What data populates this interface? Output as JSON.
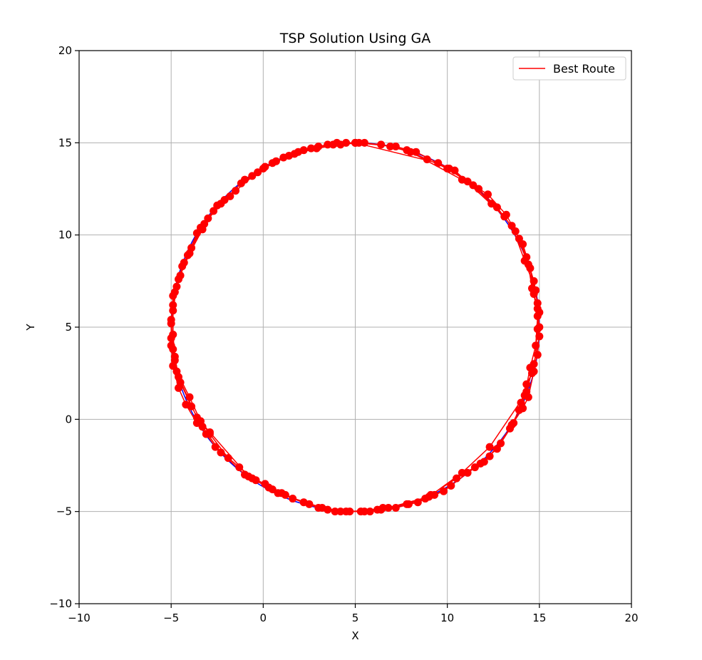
{
  "chart_data": {
    "type": "line",
    "title": "TSP Solution Using GA",
    "xlabel": "X",
    "ylabel": "Y",
    "xlim": [
      -10,
      20
    ],
    "ylim": [
      -10,
      20
    ],
    "xticks": [
      -10,
      -5,
      0,
      5,
      10,
      15,
      20
    ],
    "yticks": [
      -10,
      -5,
      0,
      5,
      10,
      15,
      20
    ],
    "xtick_labels": [
      "−10",
      "−5",
      "0",
      "5",
      "10",
      "15",
      "20"
    ],
    "ytick_labels": [
      "−10",
      "−5",
      "0",
      "5",
      "10",
      "15",
      "20"
    ],
    "grid": true,
    "legend": {
      "position": "top-right",
      "entries": [
        {
          "label": "Best Route",
          "color": "#ff0000"
        }
      ]
    },
    "circle": {
      "center": [
        5,
        5
      ],
      "radius": 10,
      "color": "#0000ff"
    },
    "series": [
      {
        "name": "Best Route",
        "color": "#ff0000",
        "marker_color": "#ff0000",
        "points": [
          [
            5.0,
            15.0
          ],
          [
            7.2,
            14.8
          ],
          [
            8.3,
            14.5
          ],
          [
            10.1,
            13.6
          ],
          [
            11.1,
            12.9
          ],
          [
            12.2,
            12.2
          ],
          [
            13.2,
            11.1
          ],
          [
            13.9,
            9.8
          ],
          [
            14.3,
            8.8
          ],
          [
            14.7,
            7.5
          ],
          [
            14.9,
            6.3
          ],
          [
            15.0,
            5.0
          ],
          [
            14.9,
            3.5
          ],
          [
            14.6,
            2.5
          ],
          [
            14.3,
            1.9
          ],
          [
            14.0,
            0.9
          ],
          [
            13.6,
            -0.2
          ],
          [
            12.9,
            -1.3
          ],
          [
            12.0,
            -2.3
          ],
          [
            11.1,
            -2.9
          ],
          [
            10.2,
            -3.6
          ],
          [
            9.3,
            -4.1
          ],
          [
            8.4,
            -4.5
          ],
          [
            7.2,
            -4.8
          ],
          [
            6.2,
            -4.9
          ],
          [
            5.5,
            -5.0
          ],
          [
            4.7,
            -5.0
          ],
          [
            3.5,
            -4.9
          ],
          [
            2.2,
            -4.5
          ],
          [
            1.0,
            -4.0
          ],
          [
            0.3,
            -3.7
          ],
          [
            -0.4,
            -3.3
          ],
          [
            -1.3,
            -2.6
          ],
          [
            -2.6,
            -1.5
          ],
          [
            -3.1,
            -0.8
          ],
          [
            -3.6,
            -0.2
          ],
          [
            -4.2,
            0.8
          ],
          [
            -4.6,
            1.7
          ],
          [
            -4.9,
            2.9
          ],
          [
            -5.0,
            4.0
          ],
          [
            -5.0,
            5.2
          ],
          [
            -4.9,
            6.7
          ],
          [
            -4.5,
            7.8
          ],
          [
            -4.1,
            8.9
          ],
          [
            -3.6,
            10.1
          ],
          [
            -3.0,
            10.9
          ],
          [
            -2.1,
            11.9
          ],
          [
            -1.0,
            13.0
          ],
          [
            0.1,
            13.7
          ],
          [
            1.1,
            14.2
          ],
          [
            2.2,
            14.6
          ],
          [
            3.5,
            14.9
          ],
          [
            4.5,
            15.0
          ],
          [
            5.0,
            15.0
          ],
          [
            9.5,
            13.9
          ],
          [
            10.4,
            13.5
          ],
          [
            13.1,
            11.0
          ],
          [
            14.1,
            9.5
          ],
          [
            14.5,
            8.2
          ],
          [
            14.7,
            6.8
          ],
          [
            14.9,
            5.6
          ],
          [
            14.8,
            4.0
          ],
          [
            14.5,
            2.8
          ],
          [
            14.2,
            1.3
          ],
          [
            12.3,
            -1.5
          ],
          [
            10.8,
            -2.9
          ],
          [
            9.0,
            -4.2
          ],
          [
            6.4,
            -4.9
          ],
          [
            4.5,
            -5.0
          ],
          [
            3.2,
            -4.8
          ],
          [
            0.8,
            -4.0
          ],
          [
            -0.8,
            -3.1
          ],
          [
            -2.9,
            -0.7
          ],
          [
            -3.6,
            0.1
          ],
          [
            -4.6,
            2.3
          ],
          [
            -4.8,
            3.4
          ],
          [
            -4.9,
            4.6
          ],
          [
            -4.9,
            5.9
          ],
          [
            -4.7,
            7.2
          ],
          [
            -4.3,
            8.5
          ],
          [
            -3.4,
            10.4
          ],
          [
            -2.5,
            11.6
          ],
          [
            -1.5,
            12.4
          ],
          [
            -0.3,
            13.4
          ],
          [
            0.7,
            14.0
          ],
          [
            1.9,
            14.5
          ],
          [
            3.0,
            14.8
          ],
          [
            4.0,
            15.0
          ],
          [
            5.2,
            15.0
          ],
          [
            6.4,
            14.9
          ],
          [
            7.8,
            14.6
          ],
          [
            8.9,
            14.1
          ],
          [
            10.0,
            13.6
          ],
          [
            11.4,
            12.7
          ],
          [
            12.4,
            11.7
          ],
          [
            13.5,
            10.5
          ],
          [
            14.2,
            8.6
          ],
          [
            14.8,
            7.0
          ],
          [
            14.9,
            6.0
          ],
          [
            15.0,
            4.5
          ],
          [
            14.7,
            3.0
          ],
          [
            14.3,
            1.5
          ],
          [
            13.9,
            0.5
          ],
          [
            13.4,
            -0.5
          ],
          [
            12.3,
            -2.0
          ],
          [
            11.5,
            -2.6
          ],
          [
            9.8,
            -3.9
          ],
          [
            8.8,
            -4.3
          ],
          [
            7.8,
            -4.6
          ],
          [
            6.8,
            -4.8
          ],
          [
            5.8,
            -5.0
          ],
          [
            4.2,
            -5.0
          ],
          [
            3.0,
            -4.8
          ],
          [
            1.6,
            -4.3
          ],
          [
            0.5,
            -3.8
          ],
          [
            -0.6,
            -3.2
          ],
          [
            -1.9,
            -2.1
          ],
          [
            -2.9,
            -0.8
          ],
          [
            -3.4,
            -0.1
          ],
          [
            -4.0,
            1.2
          ],
          [
            -4.7,
            2.6
          ],
          [
            -4.9,
            3.8
          ],
          [
            -5.0,
            5.4
          ],
          [
            -4.8,
            6.9
          ],
          [
            -4.4,
            8.3
          ],
          [
            -3.9,
            9.3
          ],
          [
            -3.2,
            10.6
          ],
          [
            -2.3,
            11.7
          ],
          [
            -1.2,
            12.8
          ],
          [
            0.0,
            13.6
          ],
          [
            1.4,
            14.3
          ],
          [
            2.6,
            14.7
          ],
          [
            3.8,
            14.9
          ],
          [
            5.5,
            15.0
          ],
          [
            6.9,
            14.8
          ],
          [
            8.0,
            14.5
          ],
          [
            10.8,
            13.0
          ],
          [
            11.7,
            12.5
          ],
          [
            12.7,
            11.5
          ],
          [
            13.7,
            10.2
          ],
          [
            14.4,
            8.4
          ],
          [
            14.6,
            7.1
          ],
          [
            15.0,
            5.8
          ],
          [
            14.9,
            4.9
          ],
          [
            14.7,
            2.6
          ],
          [
            14.4,
            1.2
          ],
          [
            14.1,
            0.6
          ],
          [
            13.5,
            -0.3
          ],
          [
            12.7,
            -1.6
          ],
          [
            11.8,
            -2.4
          ],
          [
            10.5,
            -3.2
          ],
          [
            9.1,
            -4.1
          ],
          [
            7.9,
            -4.6
          ],
          [
            6.5,
            -4.8
          ],
          [
            5.3,
            -5.0
          ],
          [
            3.9,
            -5.0
          ],
          [
            2.5,
            -4.6
          ],
          [
            1.2,
            -4.1
          ],
          [
            0.1,
            -3.5
          ],
          [
            -1.0,
            -3.0
          ],
          [
            -2.3,
            -1.8
          ],
          [
            -3.3,
            -0.4
          ],
          [
            -3.9,
            0.7
          ],
          [
            -4.5,
            2.0
          ],
          [
            -4.8,
            3.2
          ],
          [
            -5.0,
            4.4
          ],
          [
            -4.9,
            6.2
          ],
          [
            -4.6,
            7.6
          ],
          [
            -4.0,
            9.0
          ],
          [
            -3.3,
            10.3
          ],
          [
            -2.7,
            11.3
          ],
          [
            -1.8,
            12.1
          ],
          [
            -0.6,
            13.2
          ],
          [
            0.5,
            13.9
          ],
          [
            1.7,
            14.4
          ],
          [
            2.9,
            14.7
          ],
          [
            4.2,
            14.9
          ],
          [
            5.0,
            15.0
          ]
        ]
      }
    ]
  }
}
